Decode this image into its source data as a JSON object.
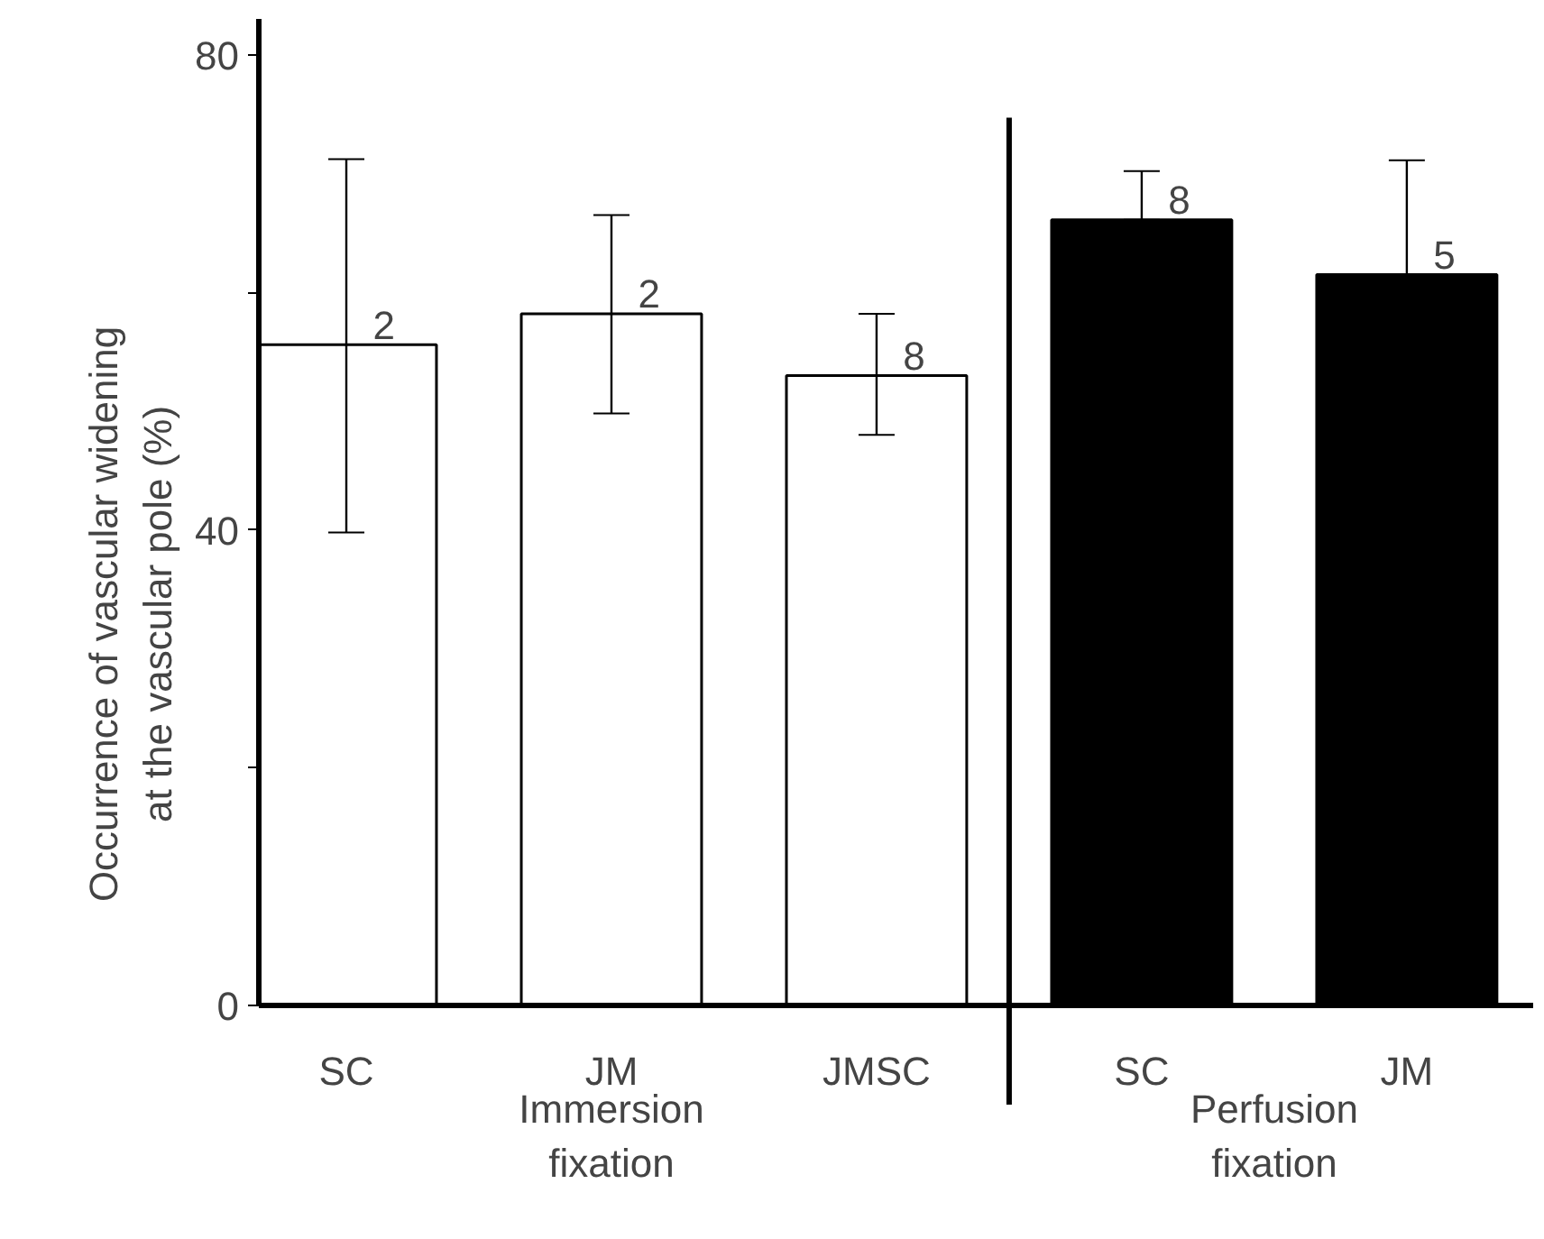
{
  "chart_data": {
    "type": "bar",
    "ylabel": "Occurrence of vascular widening\nat the vascular pole (%)",
    "categories": [
      "SC",
      "JM",
      "JMSC",
      "SC",
      "JM"
    ],
    "values": [
      55.6,
      58.2,
      53.0,
      66.1,
      61.5
    ],
    "colors": [
      "#ffffff",
      "#ffffff",
      "#ffffff",
      "#000000",
      "#000000"
    ],
    "errors": [
      [
        39.8,
        71.2
      ],
      [
        49.8,
        66.5
      ],
      [
        48.0,
        58.2
      ],
      [
        66.1,
        70.2
      ],
      [
        61.5,
        71.1
      ]
    ],
    "ylim": [
      0,
      83
    ],
    "yticks": [
      0,
      {
        "value": 20,
        "label": null
      },
      40,
      {
        "value": 60,
        "label": null
      },
      80
    ],
    "annotations": [
      {
        "text": "2",
        "x": "SC",
        "y": 55.6
      },
      {
        "text": "2",
        "x": "JM",
        "y": 58.2
      },
      {
        "text": "8",
        "x": "JMSC",
        "y": 53.0
      },
      "8",
      "5",
      "Immersion\nfixation",
      "Perfusion\nfixation"
    ],
    "grid": false
  }
}
